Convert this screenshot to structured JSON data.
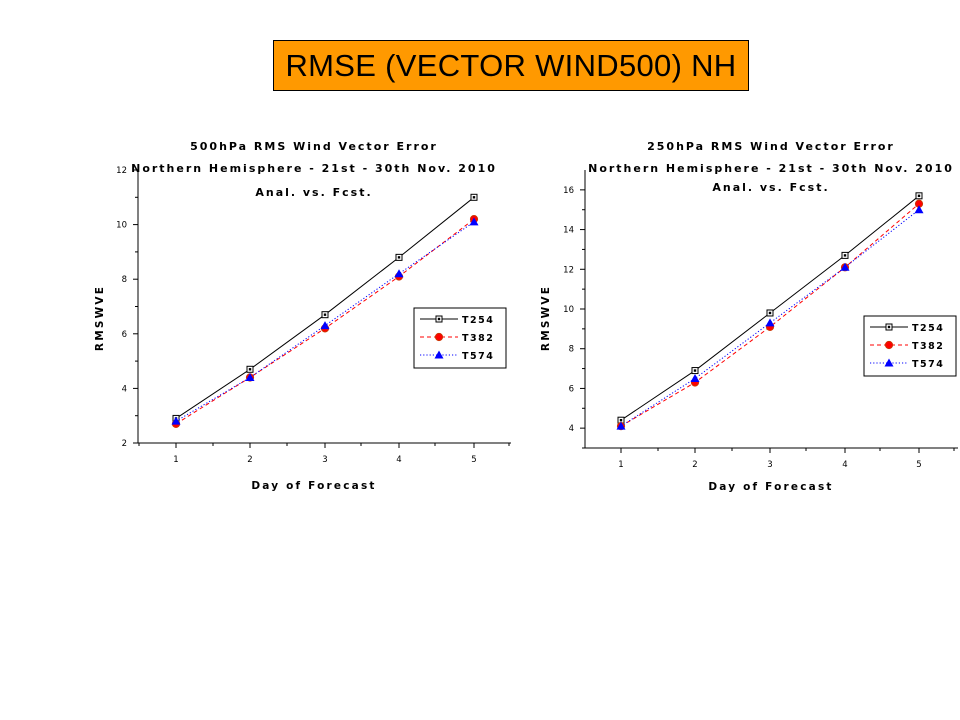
{
  "header": {
    "title": "RMSE (VECTOR WIND500) NH",
    "background": "#ff9900"
  },
  "chart_data": [
    {
      "type": "line",
      "title": "500hPa RMS Wind Vector Error",
      "subtitle_lines": [
        "Northern Hemisphere - 21st - 30th Nov. 2010",
        "Anal. vs. Fcst."
      ],
      "xlabel": "Day of Forecast",
      "ylabel": "RMSWVE",
      "x": [
        1,
        2,
        3,
        4,
        5
      ],
      "xticks": [
        "1",
        "2",
        "3",
        "4",
        "5"
      ],
      "ylim": [
        2,
        12
      ],
      "yticks": [
        "2",
        "4",
        "6",
        "8",
        "10",
        "12"
      ],
      "legend_position": "right",
      "series": [
        {
          "name": "T254",
          "values": [
            2.9,
            4.7,
            6.7,
            8.8,
            11.0
          ],
          "color": "#000000",
          "marker": "square",
          "line": "solid"
        },
        {
          "name": "T382",
          "values": [
            2.7,
            4.4,
            6.2,
            8.1,
            10.2
          ],
          "color": "#ff0000",
          "marker": "circle",
          "line": "dashed"
        },
        {
          "name": "T574",
          "values": [
            2.8,
            4.4,
            6.3,
            8.2,
            10.1
          ],
          "color": "#0000ff",
          "marker": "triangle",
          "line": "dotted"
        }
      ]
    },
    {
      "type": "line",
      "title": "250hPa RMS Wind Vector Error",
      "subtitle_lines": [
        "Northern Hemisphere - 21st - 30th Nov. 2010",
        "Anal. vs. Fcst."
      ],
      "xlabel": "Day of Forecast",
      "ylabel": "RMSWVE",
      "x": [
        1,
        2,
        3,
        4,
        5
      ],
      "xticks": [
        "1",
        "2",
        "3",
        "4",
        "5"
      ],
      "ylim": [
        3,
        17
      ],
      "yticks": [
        "4",
        "6",
        "8",
        "10",
        "12",
        "14",
        "16"
      ],
      "legend_position": "right",
      "series": [
        {
          "name": "T254",
          "values": [
            4.4,
            6.9,
            9.8,
            12.7,
            15.7
          ],
          "color": "#000000",
          "marker": "square",
          "line": "solid"
        },
        {
          "name": "T382",
          "values": [
            4.1,
            6.3,
            9.1,
            12.1,
            15.3
          ],
          "color": "#ff0000",
          "marker": "circle",
          "line": "dashed"
        },
        {
          "name": "T574",
          "values": [
            4.1,
            6.5,
            9.3,
            12.1,
            15.0
          ],
          "color": "#0000ff",
          "marker": "triangle",
          "line": "dotted"
        }
      ]
    }
  ]
}
